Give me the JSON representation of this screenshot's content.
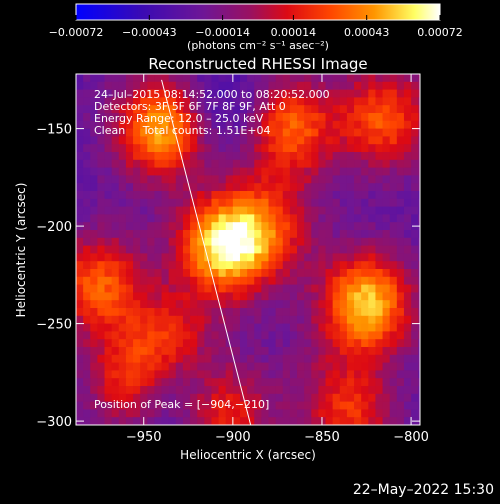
{
  "chart_data": {
    "type": "heatmap",
    "title": "Reconstructed RHESSI Image",
    "xlabel": "Heliocentric X (arcsec)",
    "ylabel": "Heliocentric Y (arcsec)",
    "xlim": [
      -988,
      -795
    ],
    "ylim": [
      -302,
      -122
    ],
    "x_ticks": [
      -950,
      -900,
      -850,
      -800
    ],
    "x_tick_labels": [
      "−950",
      "−900",
      "−850",
      "−800"
    ],
    "y_ticks": [
      -150,
      -200,
      -250,
      -300
    ],
    "y_tick_labels": [
      "−150",
      "−200",
      "−250",
      "−300"
    ],
    "colorbar": {
      "range": [
        -0.00072,
        0.00072
      ],
      "tick_values": [
        -0.00072,
        -0.00043,
        -0.00014,
        0.00014,
        0.00043,
        0.00072
      ],
      "tick_labels": [
        "−0.00072",
        "−0.00043",
        "−0.00014",
        "0.00014",
        "0.00043",
        "0.00072"
      ],
      "unit_label": "(photons cm⁻² s⁻¹ asec⁻²)",
      "colors": [
        "#0000ff",
        "#5a0aa0",
        "#7a1e8c",
        "#c80032",
        "#ff3200",
        "#ff9600",
        "#ffff78",
        "#ffffff"
      ]
    },
    "annotations": {
      "line1": "24–Jul–2015 08:14:52.000 to 08:20:52.000",
      "line2": "Detectors: 3F 5F 6F 7F 8F 9F, Att 0",
      "line3": "Energy Range: 12.0 – 25.0 keV",
      "line4": "Clean     Total counts: 1.51E+04",
      "peak": "Position of Peak = [−904,−210]"
    },
    "limb_line": [
      [
        -940,
        -125
      ],
      [
        -890,
        -302
      ]
    ],
    "sources": [
      {
        "x": -905,
        "y": -210,
        "peak": 0.00072
      },
      {
        "x": -940,
        "y": -150,
        "peak": 0.00058
      },
      {
        "x": -825,
        "y": -240,
        "peak": 0.00066
      },
      {
        "x": -975,
        "y": -230,
        "peak": 0.00038
      },
      {
        "x": -868,
        "y": -150,
        "peak": 0.0004
      },
      {
        "x": -815,
        "y": -145,
        "peak": 0.00036
      },
      {
        "x": -935,
        "y": -260,
        "peak": 0.0003
      },
      {
        "x": -905,
        "y": -295,
        "peak": 0.00028
      },
      {
        "x": -835,
        "y": -295,
        "peak": 0.00026
      },
      {
        "x": -880,
        "y": -200,
        "peak": 0.00022
      },
      {
        "x": -905,
        "y": -140,
        "peak": -0.0005
      },
      {
        "x": -930,
        "y": -280,
        "peak": -0.0006
      },
      {
        "x": -860,
        "y": -270,
        "peak": -0.0002
      },
      {
        "x": -960,
        "y": -280,
        "peak": 0.0002
      },
      {
        "x": -985,
        "y": -285,
        "peak": -0.0003
      }
    ]
  },
  "footer": {
    "timestamp": "22–May–2022 15:30"
  }
}
